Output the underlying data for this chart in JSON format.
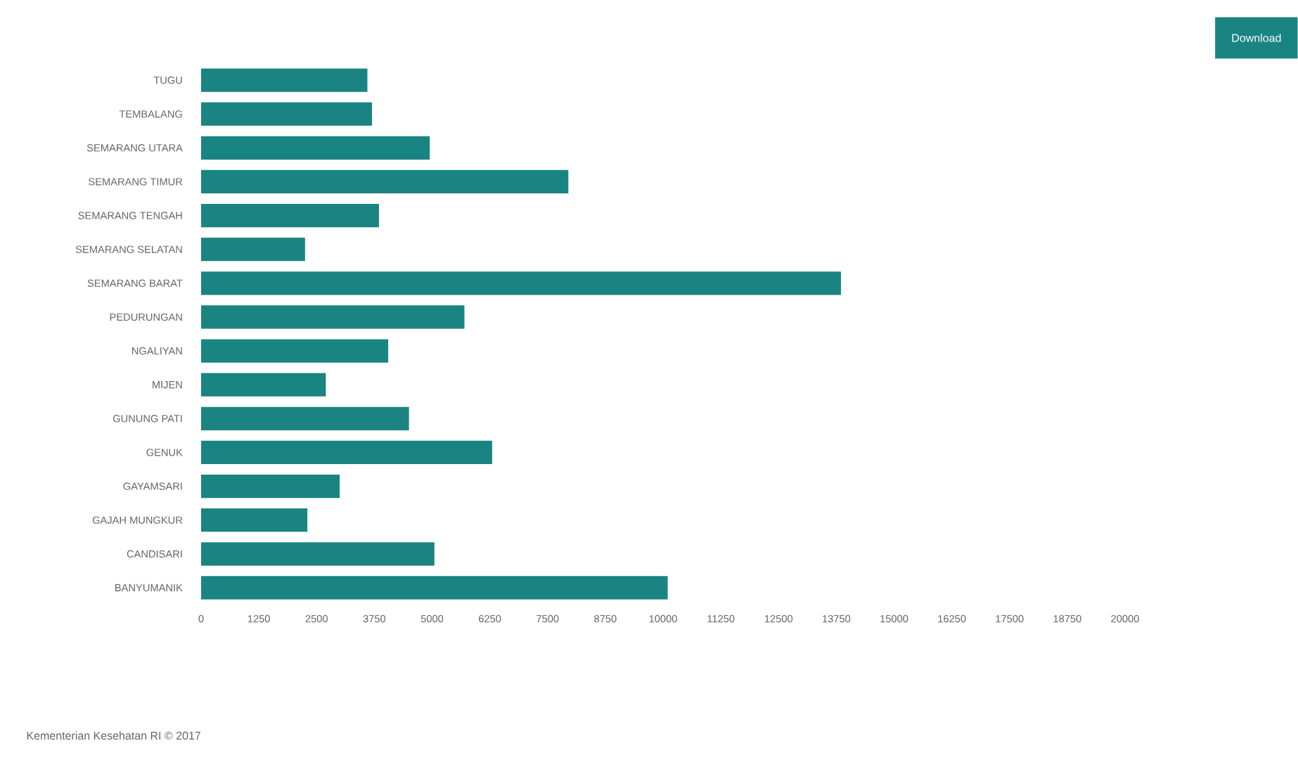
{
  "chart_data": {
    "type": "bar",
    "orientation": "horizontal",
    "color": "#1a8482",
    "categories": [
      "TUGU",
      "TEMBALANG",
      "SEMARANG UTARA",
      "SEMARANG TIMUR",
      "SEMARANG TENGAH",
      "SEMARANG SELATAN",
      "SEMARANG BARAT",
      "PEDURUNGAN",
      "NGALIYAN",
      "MIJEN",
      "GUNUNG PATI",
      "GENUK",
      "GAYAMSARI",
      "GAJAH MUNGKUR",
      "CANDISARI",
      "BANYUMANIK"
    ],
    "values": [
      3600,
      3700,
      4950,
      7950,
      3850,
      2250,
      13850,
      5700,
      4050,
      2700,
      4500,
      6300,
      3000,
      2300,
      5050,
      10100
    ],
    "xlim": [
      0,
      20000
    ],
    "xticks": [
      0,
      1250,
      2500,
      3750,
      5000,
      6250,
      7500,
      8750,
      10000,
      11250,
      12500,
      13750,
      15000,
      16250,
      17500,
      18750,
      20000
    ],
    "grid": false,
    "annotations": [
      "Download",
      "Kementerian Kesehatan RI © 2017"
    ]
  }
}
